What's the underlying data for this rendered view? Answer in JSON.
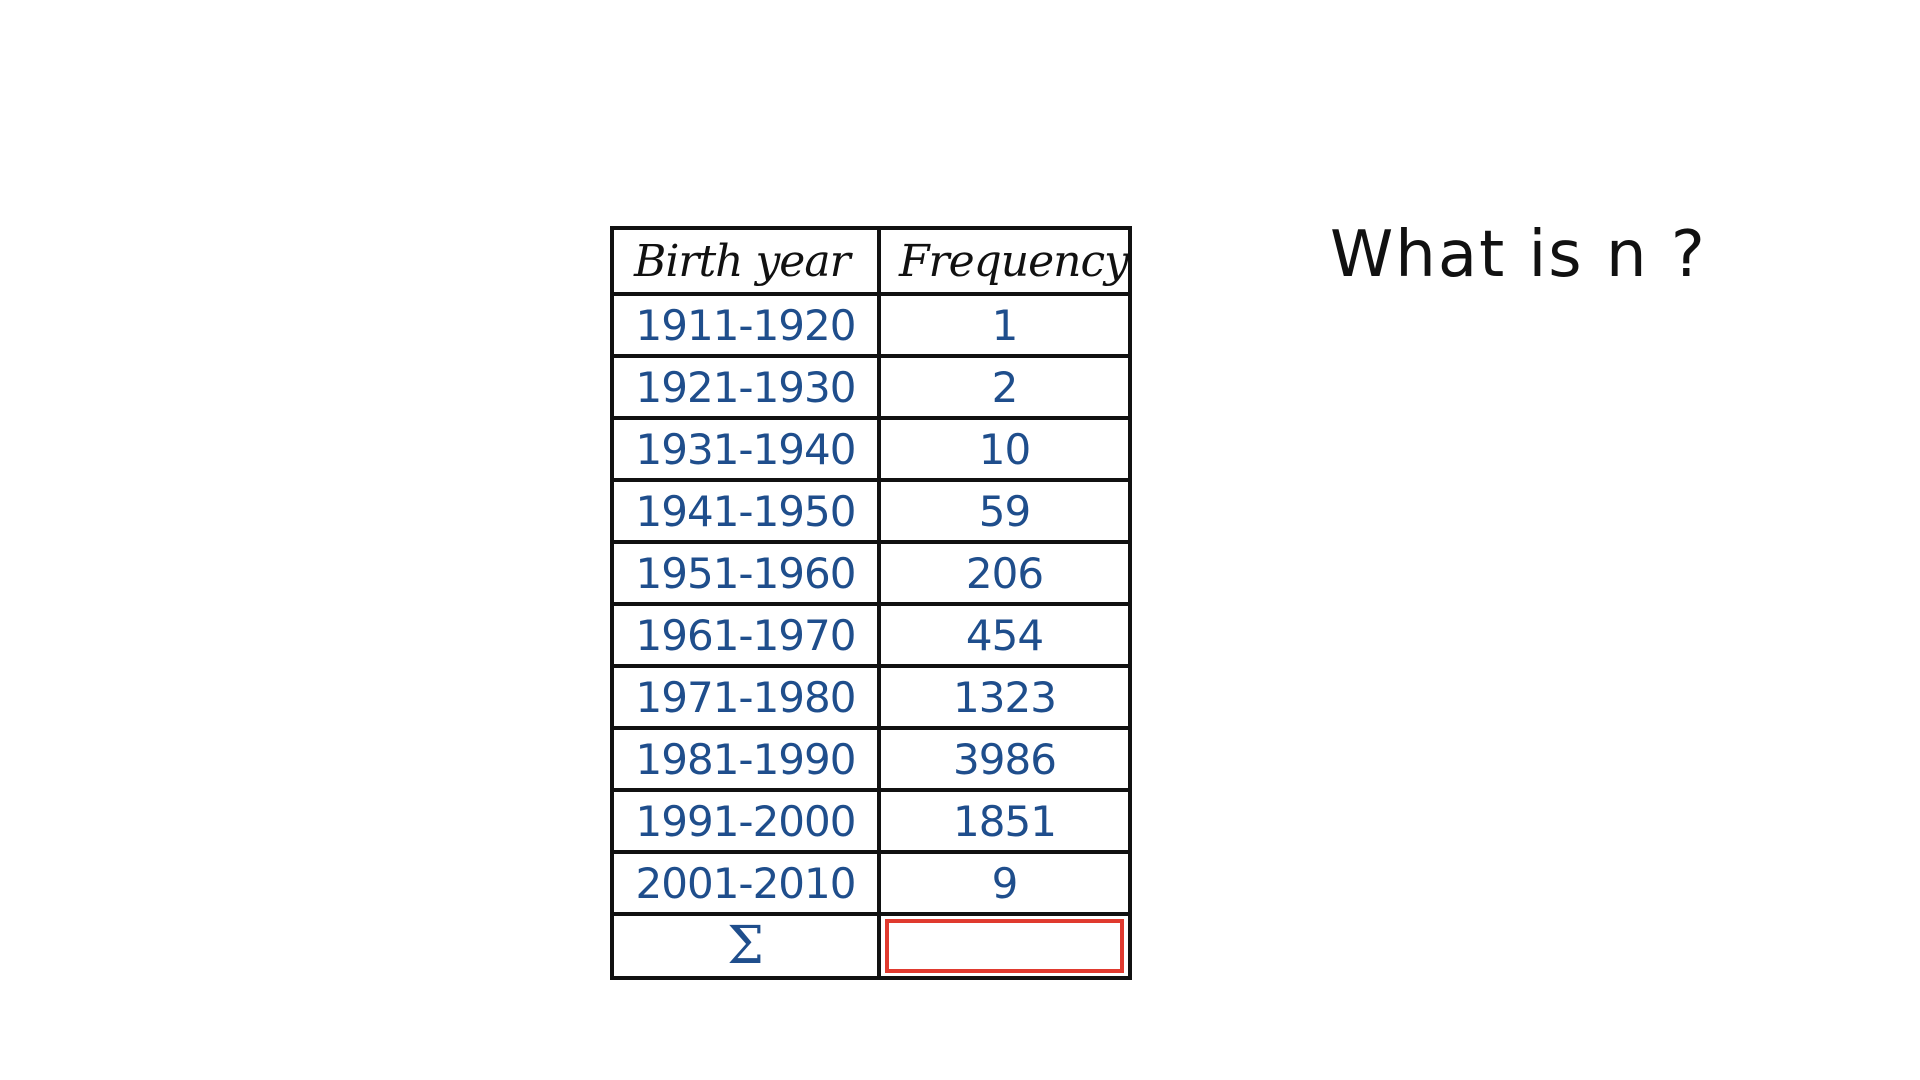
{
  "table": {
    "headers": [
      "Birth year",
      "Frequency"
    ],
    "rows": [
      {
        "year": "1911-1920",
        "frequency": "1"
      },
      {
        "year": "1921-1930",
        "frequency": "2"
      },
      {
        "year": "1931-1940",
        "frequency": "10"
      },
      {
        "year": "1941-1950",
        "frequency": "59"
      },
      {
        "year": "1951-1960",
        "frequency": "206"
      },
      {
        "year": "1961-1970",
        "frequency": "454"
      },
      {
        "year": "1971-1980",
        "frequency": "1323"
      },
      {
        "year": "1981-1990",
        "frequency": "3986"
      },
      {
        "year": "1991-2000",
        "frequency": "1851"
      },
      {
        "year": "2001-2010",
        "frequency": "9"
      }
    ],
    "sum_symbol": "Σ",
    "sum_value": ""
  },
  "question": "What is n ?",
  "colors": {
    "ink_black": "#111111",
    "ink_blue": "#1f4e8c",
    "highlight_red": "#e03a2f"
  }
}
